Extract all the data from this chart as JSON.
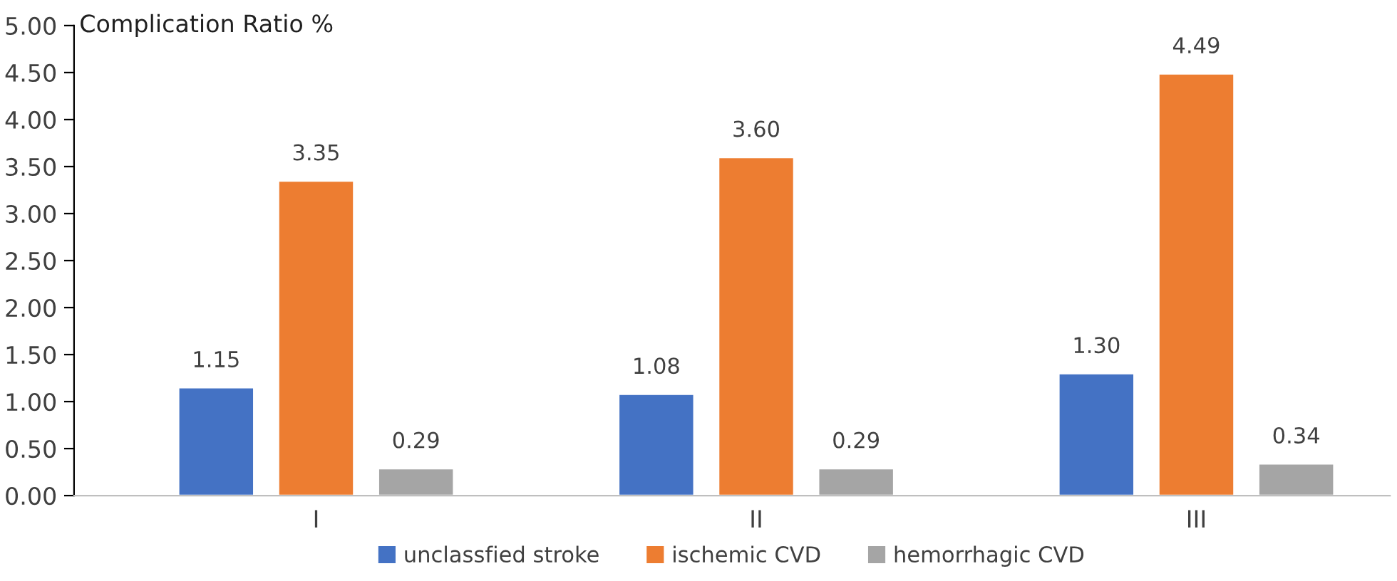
{
  "chart_data": {
    "type": "bar",
    "ylabel": "Complication Ratio %",
    "categories": [
      "I",
      "II",
      "III"
    ],
    "series": [
      {
        "name": "unclassfied stroke",
        "color": "#4472c4",
        "values": [
          1.15,
          1.08,
          1.3
        ],
        "value_labels": [
          "1.15",
          "1.08",
          "1.30"
        ]
      },
      {
        "name": "ischemic CVD",
        "color": "#ed7d31",
        "values": [
          3.35,
          3.6,
          4.49
        ],
        "value_labels": [
          "3.35",
          "3.60",
          "4.49"
        ]
      },
      {
        "name": "hemorrhagic CVD",
        "color": "#a5a5a5",
        "values": [
          0.29,
          0.29,
          0.34
        ],
        "value_labels": [
          "0.29",
          "0.29",
          "0.34"
        ]
      }
    ],
    "ylim": [
      0,
      5
    ],
    "yticks": [
      {
        "value": 0,
        "label": "0.00"
      },
      {
        "value": 0.5,
        "label": "0.50"
      },
      {
        "value": 1,
        "label": "1.00"
      },
      {
        "value": 1.5,
        "label": "1.50"
      },
      {
        "value": 2,
        "label": "2.00"
      },
      {
        "value": 2.5,
        "label": "2.50"
      },
      {
        "value": 3,
        "label": "3.00"
      },
      {
        "value": 3.5,
        "label": "3.50"
      },
      {
        "value": 4,
        "label": "4.00"
      },
      {
        "value": 4.5,
        "label": "4.50"
      },
      {
        "value": 5,
        "label": "5.00"
      }
    ],
    "grid": false,
    "legend": "bottom"
  }
}
